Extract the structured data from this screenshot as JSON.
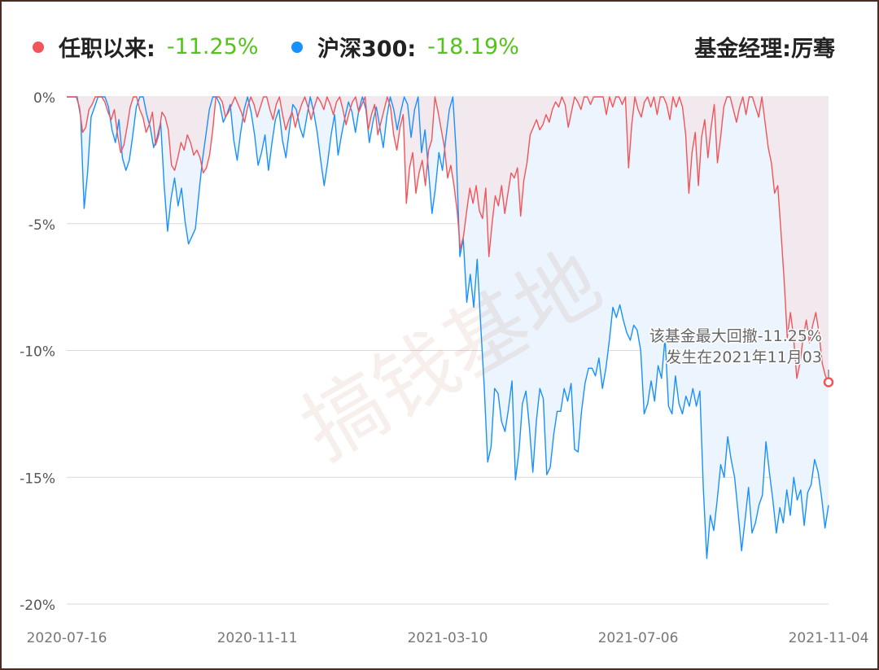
{
  "legend": {
    "fund_label": "任职以来:",
    "fund_value": "-11.25%",
    "index_label": "沪深300:",
    "index_value": "-18.19%",
    "manager": "基金经理:厉骞"
  },
  "colors": {
    "fund": "#f0555a",
    "index": "#1890ff",
    "value_text": "#52c41a",
    "fund_fill": "#f3e6ec",
    "index_fill": "#ecf4fd",
    "grid": "#d9d9d9"
  },
  "watermark": "搞钱基地",
  "chart_data": {
    "type": "line",
    "ylim": [
      -20,
      0
    ],
    "yticks": [
      "0%",
      "-5%",
      "-10%",
      "-15%",
      "-20%"
    ],
    "xticks": [
      "2020-07-16",
      "2020-11-11",
      "2021-03-10",
      "2021-07-06",
      "2021-11-04"
    ],
    "annotation": {
      "line1": "该基金最大回撤-11.25%",
      "line2": "发生在2021年11月03",
      "value": -11.25
    },
    "series": [
      {
        "name": "任职以来",
        "values": [
          0,
          0,
          0,
          0,
          -0.4,
          -1.4,
          -1.2,
          -0.5,
          -0.3,
          0,
          0,
          0,
          -0.2,
          -0.6,
          -0.9,
          -0.5,
          -1.5,
          -2.2,
          -1.9,
          -1.2,
          -0.4,
          0,
          0,
          -0.5,
          -0.8,
          -1.4,
          -1.1,
          -0.6,
          -1.9,
          -1.5,
          -0.6,
          -0.8,
          -1.3,
          -2.7,
          -2.9,
          -2.4,
          -1.8,
          -2.1,
          -1.5,
          -1.8,
          -2.3,
          -2.1,
          -2.4,
          -3.0,
          -2.8,
          -2.3,
          -1.3,
          0,
          0,
          -0.2,
          -0.8,
          -0.6,
          -0.3,
          0,
          -0.3,
          -0.6,
          -1.0,
          -0.4,
          0,
          -0.3,
          -0.8,
          -0.4,
          0,
          0,
          -0.5,
          -0.9,
          -0.3,
          0,
          -0.7,
          -1.3,
          -0.9,
          -0.6,
          -1.2,
          -0.7,
          -0.3,
          0,
          -0.4,
          -0.9,
          -0.4,
          0,
          -0.2,
          -0.5,
          0,
          -0.3,
          -0.7,
          -0.2,
          0,
          -0.5,
          -1.1,
          -0.6,
          -0.2,
          0,
          -0.6,
          -0.3,
          0,
          -1.3,
          -0.7,
          -0.3,
          -1.5,
          -1.0,
          -0.5,
          0,
          -0.4,
          -1.5,
          -2.1,
          -1.2,
          -0.7,
          -4.2,
          -2.8,
          -2.2,
          -3.8,
          -3.0,
          -2.5,
          -3.5,
          -2.1,
          -1.7,
          0,
          -0.6,
          -1.3,
          -2.0,
          -3.2,
          -2.7,
          -3.5,
          -4.5,
          -6.0,
          -5.5,
          -4.5,
          -3.6,
          -4.2,
          -3.5,
          -4.5,
          -4.8,
          -3.6,
          -6.3,
          -5.0,
          -3.9,
          -4.3,
          -3.5,
          -4.6,
          -3.8,
          -3.0,
          -3.2,
          -2.8,
          -4.7,
          -3.3,
          -2.6,
          -1.5,
          -1.2,
          -0.9,
          -1.3,
          -1.1,
          -0.7,
          -1.0,
          -0.5,
          -0.2,
          -0.4,
          0,
          -0.3,
          -1.2,
          -0.6,
          0,
          -0.2,
          -0.5,
          0,
          0,
          -0.3,
          0,
          0,
          0,
          0,
          -0.7,
          0,
          -0.4,
          0,
          0,
          -0.3,
          0,
          -2.8,
          -1.1,
          0,
          -0.5,
          -0.8,
          -0.2,
          0,
          -0.4,
          0,
          -0.7,
          0,
          0,
          -0.3,
          -0.9,
          0,
          -0.4,
          0,
          -0.4,
          -1.5,
          -3.8,
          -2.2,
          -1.4,
          -3.5,
          -1.6,
          -0.9,
          -2.4,
          -1.2,
          -0.3,
          -2.6,
          -1.6,
          -0.4,
          0,
          0,
          -0.5,
          -1.0,
          -0.4,
          0,
          -0.7,
          0,
          0,
          -0.4,
          -0.8,
          0,
          -1.0,
          -2.0,
          -2.6,
          -3.8,
          -3.5,
          -5.3,
          -7.2,
          -9.5,
          -8.5,
          -9.5,
          -11.1,
          -10.5,
          -9.5,
          -8.8,
          -9.7,
          -9.0,
          -8.5,
          -9.3,
          -10.5,
          -11.0,
          -11.25
        ]
      },
      {
        "name": "沪深300",
        "values": [
          0,
          0,
          0,
          0,
          -0.8,
          -4.4,
          -3.0,
          -0.8,
          -0.4,
          0,
          0,
          0,
          -0.4,
          -1.3,
          -1.8,
          -0.9,
          -2.4,
          -2.9,
          -2.5,
          -1.5,
          -0.4,
          0,
          0,
          -0.7,
          -1.2,
          -2.0,
          -1.6,
          -1.0,
          -3.5,
          -5.3,
          -4.0,
          -3.2,
          -4.3,
          -3.6,
          -4.9,
          -5.8,
          -5.5,
          -5.2,
          -3.8,
          -2.5,
          -1.5,
          -0.5,
          0,
          0,
          -0.3,
          -1.0,
          -0.7,
          -0.3,
          -1.7,
          -2.5,
          -1.4,
          -0.5,
          0,
          -0.6,
          -1.5,
          -2.7,
          -2.2,
          -1.5,
          -2.9,
          -1.8,
          -0.9,
          -0.5,
          -1.7,
          -2.4,
          -1.3,
          -0.3,
          -0.5,
          -1.2,
          -1.6,
          -0.8,
          0,
          -0.6,
          -1.4,
          -2.5,
          -3.5,
          -2.6,
          -1.5,
          -0.7,
          -2.3,
          -1.5,
          -0.8,
          -0.2,
          -0.6,
          -1.4,
          -0.5,
          0,
          -0.5,
          -1.8,
          -1.0,
          -0.4,
          -1.2,
          -2.0,
          -0.8,
          0,
          -0.5,
          -1.3,
          -0.6,
          0,
          -0.3,
          -1.6,
          -0.5,
          0,
          -2.2,
          -1.3,
          -2.9,
          -4.6,
          -3.6,
          -2.2,
          -2.9,
          -1.6,
          -0.5,
          0,
          -2.3,
          -6.3,
          -5.6,
          -8.1,
          -7.0,
          -8.3,
          -6.4,
          -9.0,
          -11.4,
          -14.4,
          -13.8,
          -11.5,
          -11.7,
          -12.8,
          -13.2,
          -12.3,
          -11.2,
          -15.1,
          -14.0,
          -12.1,
          -11.6,
          -13.0,
          -14.8,
          -12.8,
          -11.5,
          -11.9,
          -14.9,
          -14.6,
          -13.3,
          -12.4,
          -12.4,
          -11.5,
          -12.0,
          -11.3,
          -13.9,
          -14.0,
          -12.4,
          -11.3,
          -10.7,
          -10.7,
          -11.0,
          -10.3,
          -11.5,
          -10.7,
          -9.6,
          -8.3,
          -8.7,
          -8.2,
          -8.8,
          -9.3,
          -9.6,
          -9.0,
          -9.2,
          -10.0,
          -12.5,
          -12.1,
          -11.2,
          -12.0,
          -10.6,
          -11.1,
          -9.5,
          -12.2,
          -12.5,
          -11.0,
          -12.1,
          -12.5,
          -11.8,
          -12.2,
          -11.5,
          -12.2,
          -11.6,
          -15.4,
          -18.2,
          -16.5,
          -17.1,
          -15.9,
          -14.5,
          -15.0,
          -13.4,
          -14.3,
          -15.0,
          -16.4,
          -17.9,
          -16.7,
          -15.4,
          -17.2,
          -16.8,
          -16.1,
          -15.7,
          -13.6,
          -14.8,
          -15.9,
          -17.2,
          -16.2,
          -16.8,
          -15.5,
          -16.5,
          -15.0,
          -15.9,
          -15.5,
          -16.9,
          -15.6,
          -15.3,
          -14.3,
          -14.8,
          -15.8,
          -17.0,
          -16.1
        ]
      }
    ]
  }
}
